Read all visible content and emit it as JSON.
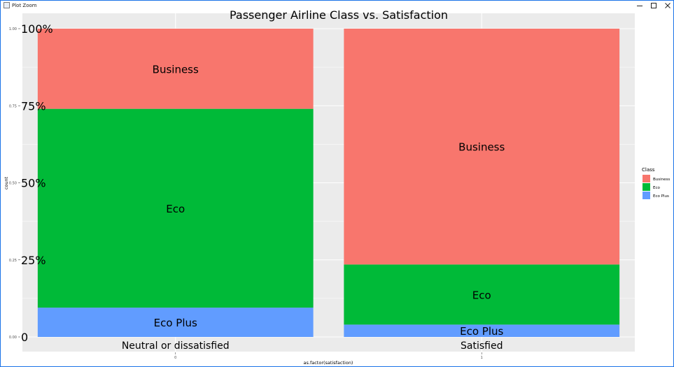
{
  "window": {
    "title": "Plot Zoom",
    "controls": [
      "minimize-icon",
      "maximize-icon",
      "close-icon"
    ]
  },
  "colors": {
    "Business": "#F8766D",
    "Eco": "#00BA38",
    "Eco Plus": "#619CFF",
    "panel_bg": "#EBEBEB",
    "grid": "#FFFFFF",
    "window_border": "#1A73E8"
  },
  "chart_data": {
    "type": "bar",
    "stacked": "fill",
    "title": "Passenger Airline Class vs. Satisfaction",
    "xlabel": "as.factor(satisfaction)",
    "ylabel": "count",
    "ylim": [
      0,
      1
    ],
    "grid": true,
    "categories": [
      "0",
      "1"
    ],
    "category_labels": [
      "Neutral or dissatisfied",
      "Satisfied"
    ],
    "y_ticks": [
      0,
      0.25,
      0.5,
      0.75,
      1
    ],
    "y_tick_labels": [
      "0.00",
      "0.25",
      "0.50",
      "0.75",
      "1.00"
    ],
    "y_percent_labels": [
      "0",
      "25%",
      "50%",
      "75%",
      "100%"
    ],
    "legend": {
      "title": "Class",
      "position": "right"
    },
    "series": [
      {
        "name": "Business",
        "values": [
          0.26,
          0.765
        ]
      },
      {
        "name": "Eco",
        "values": [
          0.645,
          0.195
        ]
      },
      {
        "name": "Eco Plus",
        "values": [
          0.095,
          0.04
        ]
      }
    ]
  }
}
